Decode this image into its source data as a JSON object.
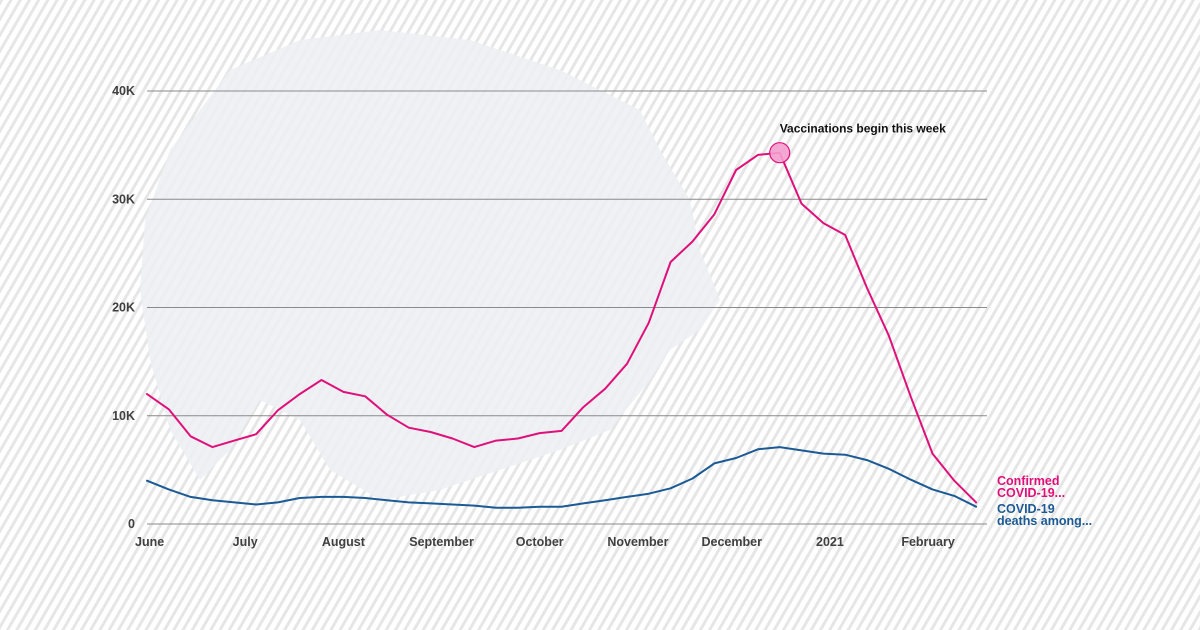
{
  "colors": {
    "background": "#ffffff",
    "stripe": "#e6e6e6",
    "map_shape": "#eceff2",
    "grid": "#8a8a8a",
    "axis_text": "#404040",
    "confirmed": "#e0107a",
    "deaths": "#1b5a94",
    "marker_fill": "#f59fcf"
  },
  "chart_data": {
    "type": "line",
    "title": "",
    "xlabel": "",
    "ylabel": "",
    "x": [
      0,
      1,
      2,
      3,
      4,
      5,
      6,
      7,
      8,
      9,
      10,
      11,
      12,
      13,
      14,
      15,
      16,
      17,
      18,
      19,
      20,
      21,
      22,
      23,
      24,
      25,
      26,
      27,
      28,
      29,
      30,
      31,
      32,
      33,
      34,
      35,
      36,
      37,
      38
    ],
    "x_ticks": [
      {
        "label": "June",
        "x": 0
      },
      {
        "label": "July",
        "x": 4.5
      },
      {
        "label": "August",
        "x": 9
      },
      {
        "label": "September",
        "x": 13.5
      },
      {
        "label": "October",
        "x": 18
      },
      {
        "label": "November",
        "x": 22.5
      },
      {
        "label": "December",
        "x": 26.8
      },
      {
        "label": "2021",
        "x": 31.3
      },
      {
        "label": "February",
        "x": 35.8
      }
    ],
    "xlim": [
      0,
      38.5
    ],
    "ylim": [
      0,
      40000
    ],
    "y_ticks": [
      {
        "label": "0",
        "value": 0
      },
      {
        "label": "10K",
        "value": 10000
      },
      {
        "label": "20K",
        "value": 20000
      },
      {
        "label": "30K",
        "value": 30000
      },
      {
        "label": "40K",
        "value": 40000
      }
    ],
    "grid": true,
    "series": [
      {
        "name": "Confirmed COVID-19...",
        "label_lines": [
          "Confirmed",
          "COVID-19..."
        ],
        "color": "#e0107a",
        "values": [
          12000,
          10600,
          8100,
          7100,
          7700,
          8300,
          10500,
          12000,
          13300,
          12200,
          11800,
          10100,
          8900,
          8500,
          7900,
          7100,
          7700,
          7900,
          8400,
          8600,
          10800,
          12500,
          14800,
          18600,
          24200,
          26100,
          28600,
          32700,
          34100,
          34300,
          29600,
          27800,
          26700,
          21800,
          17400,
          11800,
          6500,
          4000,
          2000
        ]
      },
      {
        "name": "COVID-19 deaths among...",
        "label_lines": [
          "COVID-19",
          "deaths among..."
        ],
        "color": "#1b5a94",
        "values": [
          4000,
          3200,
          2500,
          2200,
          2000,
          1800,
          2000,
          2400,
          2500,
          2500,
          2400,
          2200,
          2000,
          1900,
          1800,
          1700,
          1500,
          1500,
          1600,
          1600,
          1900,
          2200,
          2500,
          2800,
          3300,
          4200,
          5600,
          6100,
          6900,
          7100,
          6800,
          6500,
          6400,
          5900,
          5100,
          4100,
          3200,
          2600,
          1600
        ]
      }
    ],
    "annotations": [
      {
        "text": "Vaccinations begin this week",
        "x": 29,
        "y": 34300,
        "series": 0
      }
    ]
  }
}
